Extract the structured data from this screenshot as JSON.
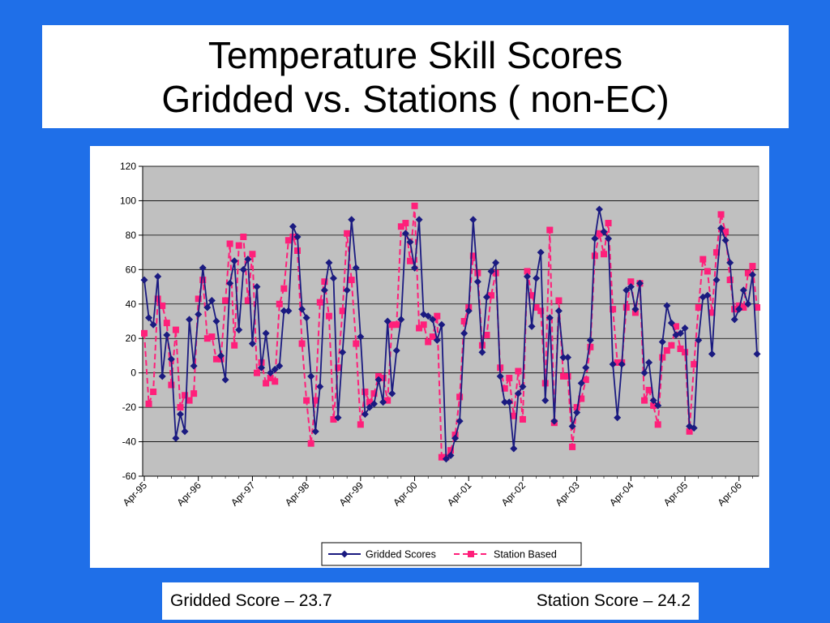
{
  "slide": {
    "title_line1": "Temperature Skill Scores",
    "title_line2": "Gridded vs. Stations ( non-EC)",
    "background_color": "#1f6fe8"
  },
  "scores": {
    "gridded": "Gridded Score – 23.7",
    "station": "Station Score – 24.2"
  },
  "chart_data": {
    "type": "line",
    "title": "",
    "xlabel": "",
    "ylabel": "",
    "ylim": [
      -60,
      120
    ],
    "yticks": [
      -60,
      -40,
      -20,
      0,
      20,
      40,
      60,
      80,
      100,
      120
    ],
    "x_tick_labels": [
      "Apr-95",
      "Apr-96",
      "Apr-97",
      "Apr-98",
      "Apr-99",
      "Apr-00",
      "Apr-01",
      "Apr-02",
      "Apr-03",
      "Apr-04",
      "Apr-05",
      "Apr-06"
    ],
    "x_tick_start_index": 0,
    "x_tick_step": 12,
    "grid": "horizontal",
    "plot_background": "#c0c0c0",
    "legend_position": "bottom",
    "series": [
      {
        "name": "Gridded Scores",
        "color": "#1a1a80",
        "line_style": "solid",
        "marker": "diamond",
        "values": [
          54,
          32,
          28,
          56,
          -2,
          22,
          8,
          -38,
          -24,
          -34,
          31,
          4,
          34,
          61,
          38,
          42,
          30,
          10,
          -4,
          52,
          65,
          25,
          60,
          66,
          17,
          50,
          3,
          23,
          0,
          2,
          4,
          36,
          36,
          85,
          79,
          37,
          32,
          -2,
          -34,
          -8,
          48,
          64,
          55,
          -26,
          12,
          48,
          89,
          61,
          21,
          -24,
          -20,
          -18,
          -4,
          -17,
          30,
          -12,
          13,
          31,
          81,
          76,
          61,
          89,
          34,
          33,
          31,
          19,
          28,
          -50,
          -48,
          -38,
          -28,
          23,
          36,
          89,
          53,
          12,
          44,
          59,
          64,
          -2,
          -17,
          -17,
          -44,
          -12,
          -8,
          56,
          27,
          55,
          70,
          -16,
          32,
          -28,
          36,
          9,
          9,
          -31,
          -23,
          -6,
          3,
          19,
          78,
          95,
          82,
          78,
          5,
          -26,
          5,
          48,
          50,
          37,
          52,
          0,
          6,
          -16,
          -19,
          18,
          39,
          29,
          22,
          23,
          26,
          -31,
          -32,
          19,
          44,
          45,
          11,
          54,
          84,
          77,
          64,
          31,
          37,
          48,
          40,
          57,
          11
        ]
      },
      {
        "name": "Station Based",
        "color": "#ff1f7a",
        "line_style": "dashed",
        "marker": "square",
        "values": [
          23,
          -18,
          -11,
          43,
          39,
          29,
          -7,
          25,
          -20,
          -13,
          -16,
          -12,
          43,
          54,
          20,
          21,
          8,
          8,
          42,
          75,
          16,
          74,
          79,
          42,
          69,
          0,
          6,
          -6,
          -3,
          -5,
          40,
          49,
          77,
          79,
          71,
          17,
          -16,
          -41,
          -16,
          41,
          53,
          33,
          -27,
          3,
          36,
          81,
          54,
          17,
          -30,
          -11,
          -17,
          -12,
          -2,
          -3,
          -16,
          28,
          28,
          85,
          87,
          65,
          97,
          26,
          28,
          18,
          21,
          33,
          -49,
          -49,
          -45,
          -36,
          -14,
          30,
          38,
          68,
          58,
          16,
          22,
          45,
          58,
          3,
          -9,
          -3,
          -25,
          1,
          -27,
          59,
          45,
          38,
          36,
          -6,
          83,
          -29,
          42,
          -2,
          -2,
          -43,
          -20,
          -15,
          -4,
          15,
          68,
          81,
          69,
          87,
          37,
          6,
          6,
          38,
          53,
          35,
          52,
          -16,
          -10,
          -19,
          -30,
          9,
          13,
          16,
          27,
          14,
          12,
          -34,
          5,
          38,
          66,
          59,
          35,
          70,
          92,
          82,
          54,
          37,
          39,
          38,
          58,
          62,
          38
        ]
      }
    ]
  }
}
